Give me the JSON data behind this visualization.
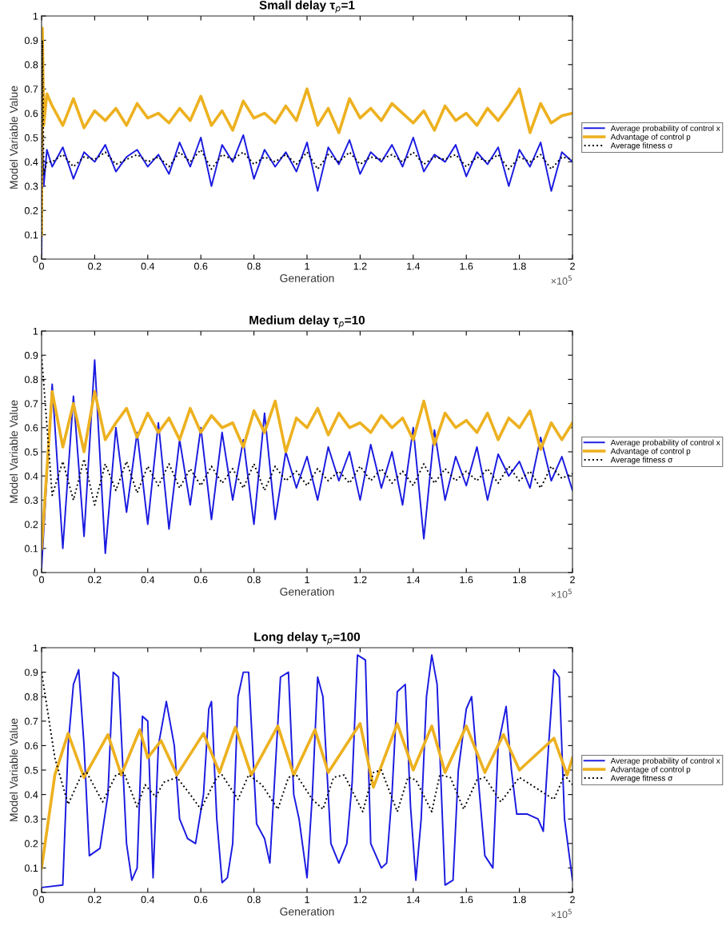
{
  "chart_data": [
    {
      "type": "line",
      "title": "Small delay τ$_{p}$=1",
      "xlabel": "Generation",
      "ylabel": "Model Variable Value",
      "xlim": [
        0,
        2
      ],
      "xticks": [
        0,
        0.2,
        0.4,
        0.6,
        0.8,
        1,
        1.2,
        1.4,
        1.6,
        1.8,
        2
      ],
      "ylim": [
        0,
        1
      ],
      "yticks": [
        0,
        0.1,
        0.2,
        0.3,
        0.4,
        0.5,
        0.6,
        0.7,
        0.8,
        0.9,
        1
      ],
      "annotations": [
        "×10$^{5}$"
      ],
      "legend": "right",
      "grid": false,
      "series": [
        {
          "name": "Average probability of control x",
          "color": "#1a1ae0",
          "line_style": "solid",
          "x": [
            0,
            0.003,
            0.008,
            0.02,
            0.04,
            0.08,
            0.12,
            0.16,
            0.2,
            0.24,
            0.28,
            0.32,
            0.36,
            0.4,
            0.44,
            0.48,
            0.52,
            0.56,
            0.6,
            0.64,
            0.68,
            0.72,
            0.76,
            0.8,
            0.84,
            0.88,
            0.92,
            0.96,
            1,
            1.04,
            1.08,
            1.12,
            1.16,
            1.2,
            1.24,
            1.28,
            1.32,
            1.36,
            1.4,
            1.44,
            1.48,
            1.52,
            1.56,
            1.6,
            1.64,
            1.68,
            1.72,
            1.76,
            1.8,
            1.84,
            1.88,
            1.92,
            1.96,
            2
          ],
          "values": [
            0.02,
            0.5,
            0.3,
            0.45,
            0.38,
            0.46,
            0.33,
            0.44,
            0.4,
            0.47,
            0.36,
            0.42,
            0.45,
            0.38,
            0.43,
            0.35,
            0.48,
            0.38,
            0.5,
            0.3,
            0.47,
            0.4,
            0.51,
            0.33,
            0.45,
            0.38,
            0.44,
            0.36,
            0.48,
            0.28,
            0.46,
            0.39,
            0.49,
            0.35,
            0.44,
            0.4,
            0.47,
            0.38,
            0.5,
            0.36,
            0.43,
            0.4,
            0.47,
            0.34,
            0.44,
            0.39,
            0.46,
            0.3,
            0.45,
            0.38,
            0.48,
            0.28,
            0.44,
            0.4
          ]
        },
        {
          "name": "Advantage of control p",
          "color": "#edb120",
          "line_style": "solid",
          "x": [
            0,
            0.003,
            0.008,
            0.02,
            0.04,
            0.08,
            0.12,
            0.16,
            0.2,
            0.24,
            0.28,
            0.32,
            0.36,
            0.4,
            0.44,
            0.48,
            0.52,
            0.56,
            0.6,
            0.64,
            0.68,
            0.72,
            0.76,
            0.8,
            0.84,
            0.88,
            0.92,
            0.96,
            1,
            1.04,
            1.08,
            1.12,
            1.16,
            1.2,
            1.24,
            1.28,
            1.32,
            1.36,
            1.4,
            1.44,
            1.48,
            1.52,
            1.56,
            1.6,
            1.64,
            1.68,
            1.72,
            1.76,
            1.8,
            1.84,
            1.88,
            1.92,
            1.96,
            2
          ],
          "values": [
            0.1,
            0.95,
            0.55,
            0.68,
            0.63,
            0.55,
            0.66,
            0.54,
            0.61,
            0.57,
            0.62,
            0.55,
            0.64,
            0.58,
            0.6,
            0.56,
            0.62,
            0.57,
            0.67,
            0.55,
            0.61,
            0.53,
            0.65,
            0.58,
            0.6,
            0.56,
            0.63,
            0.57,
            0.7,
            0.55,
            0.62,
            0.52,
            0.66,
            0.58,
            0.62,
            0.57,
            0.64,
            0.6,
            0.56,
            0.61,
            0.53,
            0.63,
            0.57,
            0.6,
            0.55,
            0.62,
            0.57,
            0.63,
            0.7,
            0.52,
            0.64,
            0.56,
            0.59,
            0.6
          ]
        },
        {
          "name": "Average fitness σ",
          "color": "#000000",
          "line_style": "dotted",
          "x": [
            0,
            0.003,
            0.008,
            0.02,
            0.04,
            0.08,
            0.12,
            0.16,
            0.2,
            0.24,
            0.28,
            0.32,
            0.36,
            0.4,
            0.44,
            0.48,
            0.52,
            0.56,
            0.6,
            0.64,
            0.68,
            0.72,
            0.76,
            0.8,
            0.84,
            0.88,
            0.92,
            0.96,
            1,
            1.04,
            1.08,
            1.12,
            1.16,
            1.2,
            1.24,
            1.28,
            1.32,
            1.36,
            1.4,
            1.44,
            1.48,
            1.52,
            1.56,
            1.6,
            1.64,
            1.68,
            1.72,
            1.76,
            1.8,
            1.84,
            1.88,
            1.92,
            1.96,
            2
          ],
          "values": [
            0.02,
            0.9,
            0.35,
            0.4,
            0.4,
            0.43,
            0.38,
            0.42,
            0.41,
            0.44,
            0.39,
            0.41,
            0.43,
            0.4,
            0.42,
            0.38,
            0.44,
            0.4,
            0.45,
            0.37,
            0.43,
            0.41,
            0.44,
            0.39,
            0.42,
            0.4,
            0.43,
            0.39,
            0.44,
            0.37,
            0.43,
            0.4,
            0.44,
            0.39,
            0.42,
            0.41,
            0.43,
            0.4,
            0.44,
            0.39,
            0.42,
            0.41,
            0.43,
            0.38,
            0.42,
            0.4,
            0.43,
            0.37,
            0.42,
            0.4,
            0.43,
            0.37,
            0.42,
            0.41
          ]
        }
      ]
    },
    {
      "type": "line",
      "title": "Medium delay τ$_{p}$=10",
      "xlabel": "Generation",
      "ylabel": "Model Variable Value",
      "xlim": [
        0,
        2
      ],
      "xticks": [
        0,
        0.2,
        0.4,
        0.6,
        0.8,
        1,
        1.2,
        1.4,
        1.6,
        1.8,
        2
      ],
      "ylim": [
        0,
        1
      ],
      "yticks": [
        0,
        0.1,
        0.2,
        0.3,
        0.4,
        0.5,
        0.6,
        0.7,
        0.8,
        0.9,
        1
      ],
      "annotations": [
        "×10$^{5}$"
      ],
      "legend": "right",
      "grid": false,
      "series": [
        {
          "name": "Average probability of control x",
          "color": "#1a1ae0",
          "line_style": "solid",
          "x": [
            0,
            0.04,
            0.08,
            0.12,
            0.16,
            0.2,
            0.24,
            0.28,
            0.32,
            0.36,
            0.4,
            0.44,
            0.48,
            0.52,
            0.56,
            0.6,
            0.64,
            0.68,
            0.72,
            0.76,
            0.8,
            0.84,
            0.88,
            0.92,
            0.96,
            1,
            1.04,
            1.08,
            1.12,
            1.16,
            1.2,
            1.24,
            1.28,
            1.32,
            1.36,
            1.4,
            1.44,
            1.48,
            1.52,
            1.56,
            1.6,
            1.64,
            1.68,
            1.72,
            1.76,
            1.8,
            1.84,
            1.88,
            1.92,
            1.96,
            2
          ],
          "values": [
            0.02,
            0.78,
            0.1,
            0.73,
            0.15,
            0.88,
            0.08,
            0.6,
            0.25,
            0.58,
            0.2,
            0.62,
            0.18,
            0.55,
            0.28,
            0.6,
            0.22,
            0.58,
            0.3,
            0.55,
            0.2,
            0.66,
            0.22,
            0.5,
            0.35,
            0.48,
            0.3,
            0.52,
            0.38,
            0.5,
            0.3,
            0.53,
            0.35,
            0.5,
            0.28,
            0.6,
            0.14,
            0.59,
            0.3,
            0.48,
            0.36,
            0.52,
            0.3,
            0.49,
            0.4,
            0.46,
            0.35,
            0.56,
            0.38,
            0.48,
            0.34
          ]
        },
        {
          "name": "Advantage of control p",
          "color": "#edb120",
          "line_style": "solid",
          "x": [
            0,
            0.04,
            0.08,
            0.12,
            0.16,
            0.2,
            0.24,
            0.28,
            0.32,
            0.36,
            0.4,
            0.44,
            0.48,
            0.52,
            0.56,
            0.6,
            0.64,
            0.68,
            0.72,
            0.76,
            0.8,
            0.84,
            0.88,
            0.92,
            0.96,
            1,
            1.04,
            1.08,
            1.12,
            1.16,
            1.2,
            1.24,
            1.28,
            1.32,
            1.36,
            1.4,
            1.44,
            1.48,
            1.52,
            1.56,
            1.6,
            1.64,
            1.68,
            1.72,
            1.76,
            1.8,
            1.84,
            1.88,
            1.92,
            1.96,
            2
          ],
          "values": [
            0.1,
            0.75,
            0.52,
            0.7,
            0.5,
            0.75,
            0.55,
            0.62,
            0.68,
            0.56,
            0.66,
            0.58,
            0.64,
            0.55,
            0.68,
            0.58,
            0.65,
            0.6,
            0.62,
            0.52,
            0.67,
            0.58,
            0.71,
            0.5,
            0.64,
            0.6,
            0.68,
            0.57,
            0.66,
            0.6,
            0.62,
            0.58,
            0.65,
            0.6,
            0.64,
            0.55,
            0.71,
            0.53,
            0.66,
            0.6,
            0.63,
            0.58,
            0.66,
            0.55,
            0.64,
            0.6,
            0.67,
            0.51,
            0.62,
            0.55,
            0.62
          ]
        },
        {
          "name": "Average fitness σ",
          "color": "#000000",
          "line_style": "dotted",
          "x": [
            0,
            0.04,
            0.08,
            0.12,
            0.16,
            0.2,
            0.24,
            0.28,
            0.32,
            0.36,
            0.4,
            0.44,
            0.48,
            0.52,
            0.56,
            0.6,
            0.64,
            0.68,
            0.72,
            0.76,
            0.8,
            0.84,
            0.88,
            0.92,
            0.96,
            1,
            1.04,
            1.08,
            1.12,
            1.16,
            1.2,
            1.24,
            1.28,
            1.32,
            1.36,
            1.4,
            1.44,
            1.48,
            1.52,
            1.56,
            1.6,
            1.64,
            1.68,
            1.72,
            1.76,
            1.8,
            1.84,
            1.88,
            1.92,
            1.96,
            2
          ],
          "values": [
            0.9,
            0.32,
            0.46,
            0.3,
            0.47,
            0.28,
            0.45,
            0.34,
            0.46,
            0.33,
            0.44,
            0.36,
            0.45,
            0.35,
            0.43,
            0.36,
            0.44,
            0.37,
            0.43,
            0.35,
            0.45,
            0.34,
            0.44,
            0.38,
            0.42,
            0.36,
            0.43,
            0.38,
            0.42,
            0.37,
            0.44,
            0.38,
            0.43,
            0.37,
            0.42,
            0.36,
            0.45,
            0.37,
            0.43,
            0.38,
            0.42,
            0.38,
            0.43,
            0.37,
            0.44,
            0.38,
            0.42,
            0.35,
            0.44,
            0.39,
            0.41
          ]
        }
      ]
    },
    {
      "type": "line",
      "title": "Long delay τ$_{p}$=100",
      "xlabel": "Generation",
      "ylabel": "Model Variable Value",
      "xlim": [
        0,
        2
      ],
      "xticks": [
        0,
        0.2,
        0.4,
        0.6,
        0.8,
        1,
        1.2,
        1.4,
        1.6,
        1.8,
        2
      ],
      "ylim": [
        0,
        1
      ],
      "yticks": [
        0,
        0.1,
        0.2,
        0.3,
        0.4,
        0.5,
        0.6,
        0.7,
        0.8,
        0.9,
        1
      ],
      "annotations": [
        "×10$^{5}$"
      ],
      "legend": "right",
      "grid": false,
      "series": [
        {
          "name": "Average probability of control x",
          "color": "#1a1ae0",
          "line_style": "solid",
          "x": [
            0,
            0.08,
            0.1,
            0.12,
            0.14,
            0.16,
            0.18,
            0.22,
            0.25,
            0.27,
            0.29,
            0.32,
            0.34,
            0.36,
            0.38,
            0.4,
            0.42,
            0.44,
            0.47,
            0.5,
            0.52,
            0.55,
            0.58,
            0.61,
            0.63,
            0.64,
            0.66,
            0.68,
            0.7,
            0.72,
            0.74,
            0.76,
            0.78,
            0.81,
            0.84,
            0.86,
            0.88,
            0.9,
            0.93,
            0.95,
            0.97,
            1.0,
            1.02,
            1.04,
            1.06,
            1.09,
            1.12,
            1.15,
            1.17,
            1.19,
            1.22,
            1.24,
            1.28,
            1.3,
            1.32,
            1.34,
            1.37,
            1.39,
            1.41,
            1.43,
            1.45,
            1.47,
            1.49,
            1.52,
            1.55,
            1.57,
            1.6,
            1.62,
            1.65,
            1.67,
            1.7,
            1.72,
            1.75,
            1.77,
            1.79,
            1.83,
            1.87,
            1.89,
            1.91,
            1.93,
            1.95,
            1.97,
            2.0
          ],
          "values": [
            0.02,
            0.03,
            0.6,
            0.85,
            0.91,
            0.6,
            0.15,
            0.18,
            0.4,
            0.9,
            0.88,
            0.2,
            0.05,
            0.1,
            0.72,
            0.7,
            0.06,
            0.6,
            0.78,
            0.6,
            0.3,
            0.22,
            0.2,
            0.4,
            0.75,
            0.78,
            0.3,
            0.04,
            0.06,
            0.2,
            0.8,
            0.9,
            0.9,
            0.28,
            0.22,
            0.12,
            0.5,
            0.88,
            0.9,
            0.4,
            0.3,
            0.06,
            0.4,
            0.88,
            0.8,
            0.2,
            0.12,
            0.2,
            0.45,
            0.97,
            0.95,
            0.2,
            0.1,
            0.12,
            0.4,
            0.82,
            0.85,
            0.35,
            0.05,
            0.3,
            0.8,
            0.97,
            0.85,
            0.03,
            0.05,
            0.5,
            0.75,
            0.8,
            0.4,
            0.15,
            0.1,
            0.6,
            0.76,
            0.5,
            0.32,
            0.32,
            0.3,
            0.25,
            0.6,
            0.91,
            0.88,
            0.3,
            0.05
          ]
        },
        {
          "name": "Advantage of control p",
          "color": "#edb120",
          "line_style": "solid",
          "x": [
            0,
            0.05,
            0.1,
            0.16,
            0.25,
            0.3,
            0.37,
            0.4,
            0.45,
            0.51,
            0.61,
            0.67,
            0.73,
            0.79,
            0.89,
            0.95,
            1.03,
            1.08,
            1.2,
            1.25,
            1.34,
            1.4,
            1.47,
            1.52,
            1.6,
            1.67,
            1.74,
            1.8,
            1.93,
            1.98,
            2.0
          ],
          "values": [
            0.1,
            0.48,
            0.65,
            0.47,
            0.645,
            0.48,
            0.665,
            0.55,
            0.62,
            0.48,
            0.65,
            0.49,
            0.675,
            0.48,
            0.68,
            0.48,
            0.665,
            0.49,
            0.69,
            0.43,
            0.69,
            0.5,
            0.68,
            0.49,
            0.68,
            0.49,
            0.645,
            0.5,
            0.63,
            0.48,
            0.55
          ]
        },
        {
          "name": "Average fitness σ",
          "color": "#000000",
          "line_style": "dotted",
          "x": [
            0,
            0.05,
            0.1,
            0.15,
            0.17,
            0.23,
            0.28,
            0.31,
            0.36,
            0.39,
            0.43,
            0.46,
            0.51,
            0.56,
            0.6,
            0.66,
            0.68,
            0.74,
            0.78,
            0.83,
            0.89,
            0.93,
            0.96,
            1.02,
            1.06,
            1.1,
            1.14,
            1.21,
            1.25,
            1.28,
            1.34,
            1.38,
            1.41,
            1.47,
            1.5,
            1.54,
            1.59,
            1.64,
            1.67,
            1.73,
            1.8,
            1.93,
            1.97,
            2.0
          ],
          "values": [
            0.9,
            0.55,
            0.36,
            0.48,
            0.49,
            0.37,
            0.48,
            0.49,
            0.35,
            0.44,
            0.39,
            0.45,
            0.47,
            0.4,
            0.34,
            0.47,
            0.48,
            0.38,
            0.48,
            0.44,
            0.34,
            0.47,
            0.48,
            0.38,
            0.34,
            0.47,
            0.48,
            0.33,
            0.49,
            0.5,
            0.33,
            0.47,
            0.46,
            0.33,
            0.48,
            0.47,
            0.34,
            0.46,
            0.47,
            0.37,
            0.47,
            0.38,
            0.48,
            0.44
          ]
        }
      ]
    }
  ]
}
